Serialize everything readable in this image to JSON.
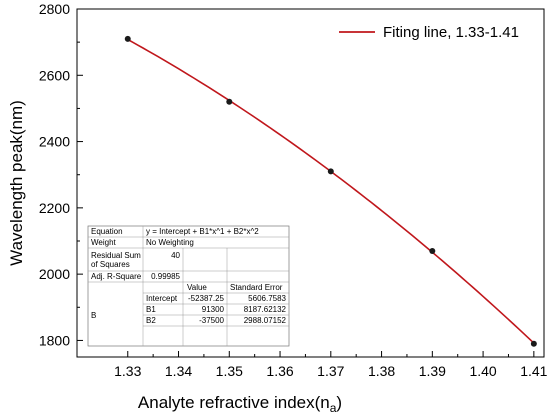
{
  "chart_data": {
    "type": "scatter",
    "xlabel": "Analyte refractive index(n",
    "xlabel_sub": "a",
    "xlabel_end": ")",
    "ylabel": "Wavelength peak(nm)",
    "xlim": [
      1.32,
      1.412
    ],
    "ylim": [
      1750,
      2800
    ],
    "x_ticks": [
      "1.33",
      "1.34",
      "1.35",
      "1.36",
      "1.37",
      "1.38",
      "1.39",
      "1.40",
      "1.41"
    ],
    "y_ticks": [
      "1800",
      "2000",
      "2200",
      "2400",
      "2600",
      "2800"
    ],
    "grid": false,
    "legend_position": "top-right",
    "series": [
      {
        "name": "Fiting line, 1.33-1.41",
        "kind": "fit-line",
        "color": "#c0171c",
        "coefficients": {
          "intercept": -52387.25,
          "b1": 91300,
          "b2": -37500
        }
      },
      {
        "kind": "points",
        "color": "#1a1a1a",
        "x": [
          1.33,
          1.35,
          1.37,
          1.39,
          1.41
        ],
        "y": [
          2710,
          2520,
          2310,
          2070,
          1790
        ]
      }
    ],
    "fit_table": {
      "equation_label": "Equation",
      "equation": "y = Intercept + B1*x^1 + B2*x^2",
      "weight_label": "Weight",
      "weight": "No Weighting",
      "rss_label_1": "Residual Sum",
      "rss_label_2": "of Squares",
      "rss": "40",
      "adjr2_label": "Adj. R-Square",
      "adjr2": "0.99985",
      "col_value": "Value",
      "col_se": "Standard Error",
      "group_label": "B",
      "rows": [
        {
          "name": "Intercept",
          "value": "-52387.25",
          "se": "5606.7583"
        },
        {
          "name": "B1",
          "value": "91300",
          "se": "8187.62132"
        },
        {
          "name": "B2",
          "value": "-37500",
          "se": "2988.07152"
        }
      ]
    }
  }
}
